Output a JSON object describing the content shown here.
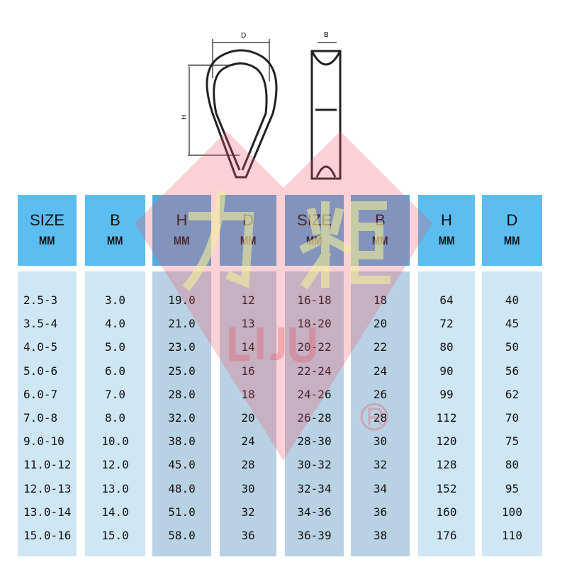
{
  "diagram": {
    "labels": {
      "d": "D",
      "b": "B",
      "h": "H"
    }
  },
  "watermark": {
    "brand_cn": "力炬",
    "brand_en": "LIJU",
    "registered": "®"
  },
  "table": {
    "columns": [
      {
        "name": "SIZE",
        "unit": "MM",
        "values": [
          "2.5-3",
          "3.5-4",
          "4.0-5",
          "5.0-6",
          "6.0-7",
          "7.0-8",
          "9.0-10",
          "11.0-12",
          "12.0-13",
          "13.0-14",
          "15.0-16"
        ]
      },
      {
        "name": "B",
        "unit": "MM",
        "values": [
          "3.0",
          "4.0",
          "5.0",
          "6.0",
          "7.0",
          "8.0",
          "10.0",
          "12.0",
          "13.0",
          "14.0",
          "15.0"
        ]
      },
      {
        "name": "H",
        "unit": "MM",
        "values": [
          "19.0",
          "21.0",
          "23.0",
          "25.0",
          "28.0",
          "32.0",
          "38.0",
          "45.0",
          "48.0",
          "51.0",
          "58.0"
        ]
      },
      {
        "name": "D",
        "unit": "MM",
        "values": [
          "12",
          "13",
          "14",
          "16",
          "18",
          "20",
          "24",
          "28",
          "30",
          "32",
          "36"
        ]
      },
      {
        "name": "SIZE",
        "unit": "MM",
        "values": [
          "16-18",
          "18-20",
          "20-22",
          "22-24",
          "24-26",
          "26-28",
          "28-30",
          "30-32",
          "32-34",
          "34-36",
          "36-39"
        ]
      },
      {
        "name": "B",
        "unit": "MM",
        "values": [
          "18",
          "20",
          "22",
          "24",
          "26",
          "28",
          "30",
          "32",
          "34",
          "36",
          "38"
        ]
      },
      {
        "name": "H",
        "unit": "MM",
        "values": [
          "64",
          "72",
          "80",
          "90",
          "99",
          "112",
          "120",
          "128",
          "152",
          "160",
          "176"
        ]
      },
      {
        "name": "D",
        "unit": "MM",
        "values": [
          "40",
          "45",
          "50",
          "56",
          "62",
          "70",
          "75",
          "80",
          "95",
          "100",
          "110"
        ]
      }
    ]
  },
  "colors": {
    "header": "#5bbdf0",
    "body": "#cfe6f4",
    "watermark_red": "#e85a6a",
    "watermark_yellow": "#f3f09a"
  }
}
